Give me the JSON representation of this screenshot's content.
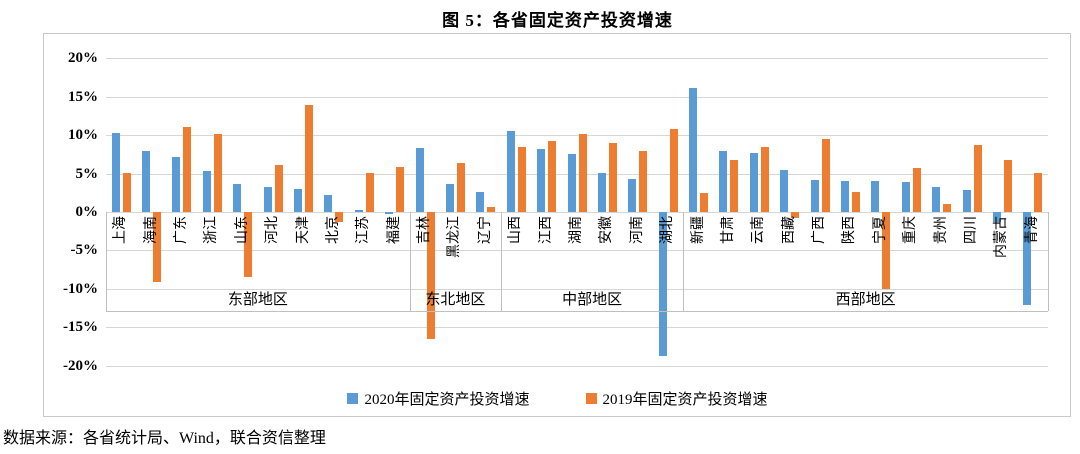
{
  "title": "图 5：各省固定资产投资增速",
  "source_note": "数据来源：各省统计局、Wind，联合资信整理",
  "colors": {
    "series_2020": "#5B9BD5",
    "series_2019": "#ED7D31",
    "gridline": "#d6d6d6",
    "axis_table_line": "#bfbfbf",
    "border": "#c9c9c9",
    "text": "#000000"
  },
  "chart_data": {
    "type": "bar",
    "title": "图 5：各省固定资产投资增速",
    "unit": "%",
    "grid": true,
    "legend_position": "bottom",
    "ylim": [
      -20,
      20
    ],
    "y_ticks": [
      {
        "value": 20,
        "label": "20%"
      },
      {
        "value": 15,
        "label": "15%"
      },
      {
        "value": 10,
        "label": "10%"
      },
      {
        "value": 5,
        "label": "5%"
      },
      {
        "value": 0,
        "label": "0%"
      },
      {
        "value": -5,
        "label": "-5%"
      },
      {
        "value": -10,
        "label": "-10%"
      },
      {
        "value": -15,
        "label": "-15%"
      },
      {
        "value": -20,
        "label": "-20%"
      }
    ],
    "categories": [
      "上海",
      "海南",
      "广东",
      "浙江",
      "山东",
      "河北",
      "天津",
      "北京",
      "江苏",
      "福建",
      "吉林",
      "黑龙江",
      "辽宁",
      "山西",
      "江西",
      "湖南",
      "安徽",
      "河南",
      "湖北",
      "新疆",
      "甘肃",
      "云南",
      "西藏",
      "广西",
      "陕西",
      "宁夏",
      "重庆",
      "贵州",
      "四川",
      "内蒙古",
      "青海"
    ],
    "groups": [
      {
        "label": "东部地区",
        "count": 10
      },
      {
        "label": "东北地区",
        "count": 3
      },
      {
        "label": "中部地区",
        "count": 6
      },
      {
        "label": "西部地区",
        "count": 12
      }
    ],
    "series": [
      {
        "name": "2020年固定资产投资增速",
        "color": "#5B9BD5",
        "values": [
          10.3,
          8.0,
          7.2,
          5.4,
          3.6,
          3.3,
          3.0,
          2.2,
          0.3,
          -0.3,
          8.3,
          3.6,
          2.6,
          10.6,
          8.2,
          7.6,
          5.1,
          4.3,
          -18.8,
          16.2,
          7.9,
          7.7,
          5.5,
          4.2,
          4.1,
          4.0,
          3.9,
          3.2,
          2.8,
          -1.3,
          -12.1
        ]
      },
      {
        "name": "2019年固定资产投资增速",
        "color": "#ED7D31",
        "values": [
          5.1,
          -9.1,
          11.1,
          10.1,
          -8.4,
          6.1,
          13.9,
          -1.3,
          5.1,
          5.9,
          -16.5,
          6.4,
          0.6,
          8.5,
          9.2,
          10.1,
          9.0,
          8.0,
          10.8,
          2.5,
          6.8,
          8.5,
          -0.8,
          9.5,
          2.6,
          -10.0,
          5.7,
          1.0,
          8.7,
          6.8,
          5.1
        ]
      }
    ]
  }
}
